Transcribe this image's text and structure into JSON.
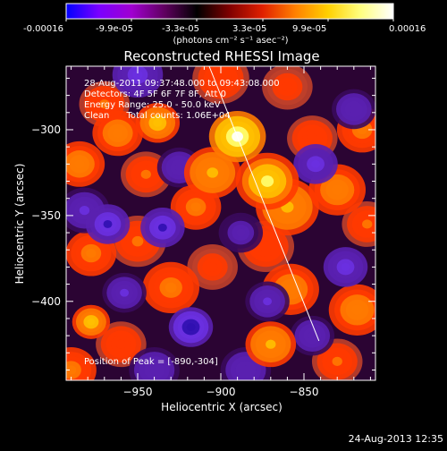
{
  "colorbar": {
    "tick_labels": [
      "-0.00016",
      "-9.9e-05",
      "-3.3e-05",
      "3.3e-05",
      "9.9e-05",
      "0.00016"
    ],
    "units_label": "(photons cm⁻² s⁻¹ asec⁻²)",
    "range": [
      -0.00016,
      0.00016
    ],
    "colors": [
      "#0000ff",
      "#7a00ff",
      "#a000d0",
      "#600060",
      "#000000",
      "#800000",
      "#e02000",
      "#ff8000",
      "#ffd000",
      "#ffff80",
      "#ffffff"
    ]
  },
  "plot": {
    "title": "Reconstructed RHESSI Image",
    "annotations": [
      "28-Aug-2011 09:37:48.000 to 09:43:08.000",
      "Detectors: 4F 5F 6F 7F 8F, Att 0",
      "Energy Range: 25.0 - 50.0 keV",
      "Clean      Total counts: 1.06E+04"
    ],
    "peak_label": "Position of Peak = [-890,-304]",
    "timestamp": "24-Aug-2013 12:35"
  },
  "chart_data": {
    "type": "heatmap",
    "title": "Reconstructed RHESSI Image",
    "xlabel": "Heliocentric X (arcsec)",
    "ylabel": "Heliocentric Y (arcsec)",
    "xlim": [
      -993,
      -807
    ],
    "ylim": [
      -446,
      -263
    ],
    "x_ticks": [
      -950,
      -900,
      -850
    ],
    "x_tick_labels": [
      "−950",
      "−900",
      "−850"
    ],
    "y_ticks": [
      -300,
      -350,
      -400
    ],
    "y_tick_labels": [
      "−300",
      "−350",
      "−400"
    ],
    "peak": [
      -890,
      -304
    ],
    "limb_line": [
      [
        -907,
        -263
      ],
      [
        -841,
        -423
      ]
    ],
    "blobs": [
      {
        "x": -890,
        "y": -304,
        "v": 1.0,
        "s": 9
      },
      {
        "x": -872,
        "y": -330,
        "v": 0.72,
        "s": 10
      },
      {
        "x": -860,
        "y": -345,
        "v": 0.55,
        "s": 10
      },
      {
        "x": -905,
        "y": -325,
        "v": 0.55,
        "s": 9
      },
      {
        "x": -915,
        "y": -345,
        "v": 0.4,
        "s": 8
      },
      {
        "x": -938,
        "y": -296,
        "v": 0.7,
        "s": 7
      },
      {
        "x": -962,
        "y": -302,
        "v": 0.45,
        "s": 8
      },
      {
        "x": -970,
        "y": -285,
        "v": 0.35,
        "s": 8
      },
      {
        "x": -945,
        "y": -326,
        "v": 0.35,
        "s": 8
      },
      {
        "x": -985,
        "y": -320,
        "v": 0.45,
        "s": 8
      },
      {
        "x": -950,
        "y": -365,
        "v": 0.35,
        "s": 9
      },
      {
        "x": -978,
        "y": -372,
        "v": 0.42,
        "s": 8
      },
      {
        "x": -930,
        "y": -392,
        "v": 0.4,
        "s": 9
      },
      {
        "x": -905,
        "y": -380,
        "v": 0.25,
        "s": 8
      },
      {
        "x": -873,
        "y": -368,
        "v": 0.3,
        "s": 9
      },
      {
        "x": -858,
        "y": -393,
        "v": 0.45,
        "s": 9
      },
      {
        "x": -870,
        "y": -425,
        "v": 0.55,
        "s": 8
      },
      {
        "x": -978,
        "y": -412,
        "v": 0.6,
        "s": 6
      },
      {
        "x": -960,
        "y": -425,
        "v": 0.3,
        "s": 8
      },
      {
        "x": -990,
        "y": -440,
        "v": 0.4,
        "s": 8
      },
      {
        "x": -845,
        "y": -305,
        "v": 0.3,
        "s": 8
      },
      {
        "x": -830,
        "y": -335,
        "v": 0.45,
        "s": 9
      },
      {
        "x": -815,
        "y": -300,
        "v": 0.4,
        "s": 8
      },
      {
        "x": -812,
        "y": -355,
        "v": 0.35,
        "s": 8
      },
      {
        "x": -818,
        "y": -405,
        "v": 0.45,
        "s": 9
      },
      {
        "x": -830,
        "y": -435,
        "v": 0.35,
        "s": 8
      },
      {
        "x": -900,
        "y": -270,
        "v": 0.3,
        "s": 9
      },
      {
        "x": -860,
        "y": -275,
        "v": 0.25,
        "s": 8
      },
      {
        "x": -982,
        "y": -347,
        "v": -0.5,
        "s": 8
      },
      {
        "x": -968,
        "y": -355,
        "v": -0.75,
        "s": 7
      },
      {
        "x": -935,
        "y": -357,
        "v": -0.8,
        "s": 7
      },
      {
        "x": -918,
        "y": -415,
        "v": -0.85,
        "s": 7
      },
      {
        "x": -958,
        "y": -395,
        "v": -0.5,
        "s": 7
      },
      {
        "x": -950,
        "y": -268,
        "v": -0.55,
        "s": 8
      },
      {
        "x": -925,
        "y": -322,
        "v": -0.45,
        "s": 7
      },
      {
        "x": -843,
        "y": -320,
        "v": -0.6,
        "s": 7
      },
      {
        "x": -872,
        "y": -400,
        "v": -0.5,
        "s": 7
      },
      {
        "x": -825,
        "y": -380,
        "v": -0.55,
        "s": 7
      },
      {
        "x": -845,
        "y": -420,
        "v": -0.45,
        "s": 7
      },
      {
        "x": -885,
        "y": -440,
        "v": -0.45,
        "s": 8
      },
      {
        "x": -820,
        "y": -288,
        "v": -0.4,
        "s": 7
      },
      {
        "x": -888,
        "y": -360,
        "v": -0.35,
        "s": 7
      },
      {
        "x": -940,
        "y": -440,
        "v": -0.4,
        "s": 8
      }
    ]
  }
}
